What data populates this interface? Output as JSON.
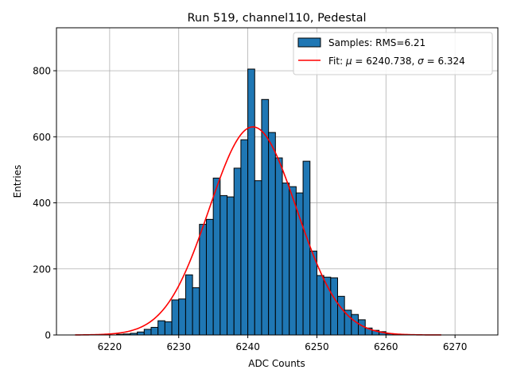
{
  "chart_data": {
    "type": "bar",
    "title": "Run 519, channel110, Pedestal",
    "xlabel": "ADC Counts",
    "ylabel": "Entries",
    "xlim": [
      6212.3,
      6276.2
    ],
    "ylim": [
      0,
      930
    ],
    "xticks": [
      6220,
      6230,
      6240,
      6250,
      6260,
      6270
    ],
    "yticks": [
      0,
      200,
      400,
      600,
      800
    ],
    "grid": true,
    "legend_position": "top-right",
    "histogram": {
      "name": "Samples: RMS=6.21",
      "color": "#1f77b4",
      "edge_color": "#000000",
      "bin_start": 6215,
      "bin_width": 1,
      "counts": [
        0,
        0,
        0,
        0,
        0,
        0,
        2,
        3,
        5,
        9,
        17,
        23,
        43,
        40,
        106,
        109,
        182,
        143,
        335,
        350,
        475,
        422,
        418,
        505,
        591,
        805,
        467,
        713,
        613,
        536,
        460,
        449,
        430,
        526,
        254,
        180,
        175,
        173,
        117,
        75,
        62,
        46,
        21,
        14,
        10,
        4,
        2,
        1,
        0,
        0,
        0,
        0,
        0,
        0,
        0,
        0,
        0,
        0,
        0
      ]
    },
    "fit": {
      "name_prefix": "Fit: ",
      "mu_symbol": "μ",
      "mu_value": " = 6240.738, ",
      "sigma_symbol": "σ",
      "sigma_value": " = 6.324",
      "mu": 6240.738,
      "sigma": 6.324,
      "amplitude": 630,
      "x_range": [
        6215,
        6268
      ],
      "color": "#ff0000"
    }
  }
}
